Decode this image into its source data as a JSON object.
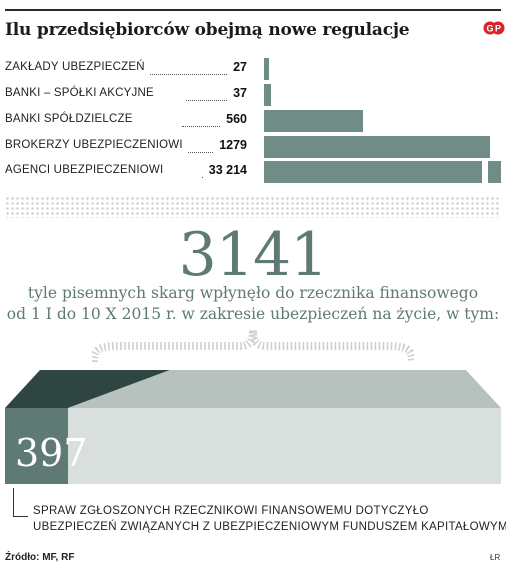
{
  "header": {
    "title": "Ilu przedsiębiorców obejmą nowe regulacje"
  },
  "chart_data": {
    "type": "bar",
    "orientation": "horizontal",
    "categories": [
      "ZAKŁADY UBEZPIECZEŃ",
      "BANKI – SPÓŁKI AKCYJNE",
      "BANKI SPÓŁDZIELCZE",
      "BROKERZY UBEZPIECZENIOWI",
      "AGENCI UBEZPIECZENIOWI"
    ],
    "values": [
      27,
      37,
      560,
      1279,
      33214
    ],
    "value_labels": [
      "27",
      "37",
      "560",
      "1279",
      "33 214"
    ],
    "axis_max": 1340,
    "broken_bar_index": 4,
    "bar_color": "#6f8d86"
  },
  "highlight": {
    "number": "3141",
    "line1": "tyle pisemnych skarg wpłynęło do rzecznika finansowego",
    "line2": "od 1 I do 10 X 2015 r. w zakresie ubezpieczeń na życie, w tym:",
    "part_value": 397,
    "part_number": "397",
    "caption_line1": "SPRAW ZGŁOSZONYCH RZECZNIKOWI FINANSOWEMU DOTYCZYŁO",
    "caption_line2": "UBEZPIECZEŃ ZWIĄZANYCH Z UBEZPIECZENIOWYM FUNDUSZEM KAPITAŁOWYM",
    "color_dark": "#5f7a74",
    "color_light": "#d9dfdd"
  },
  "footer": {
    "source": "Źródło: MF, RF",
    "credit": "ŁR"
  }
}
